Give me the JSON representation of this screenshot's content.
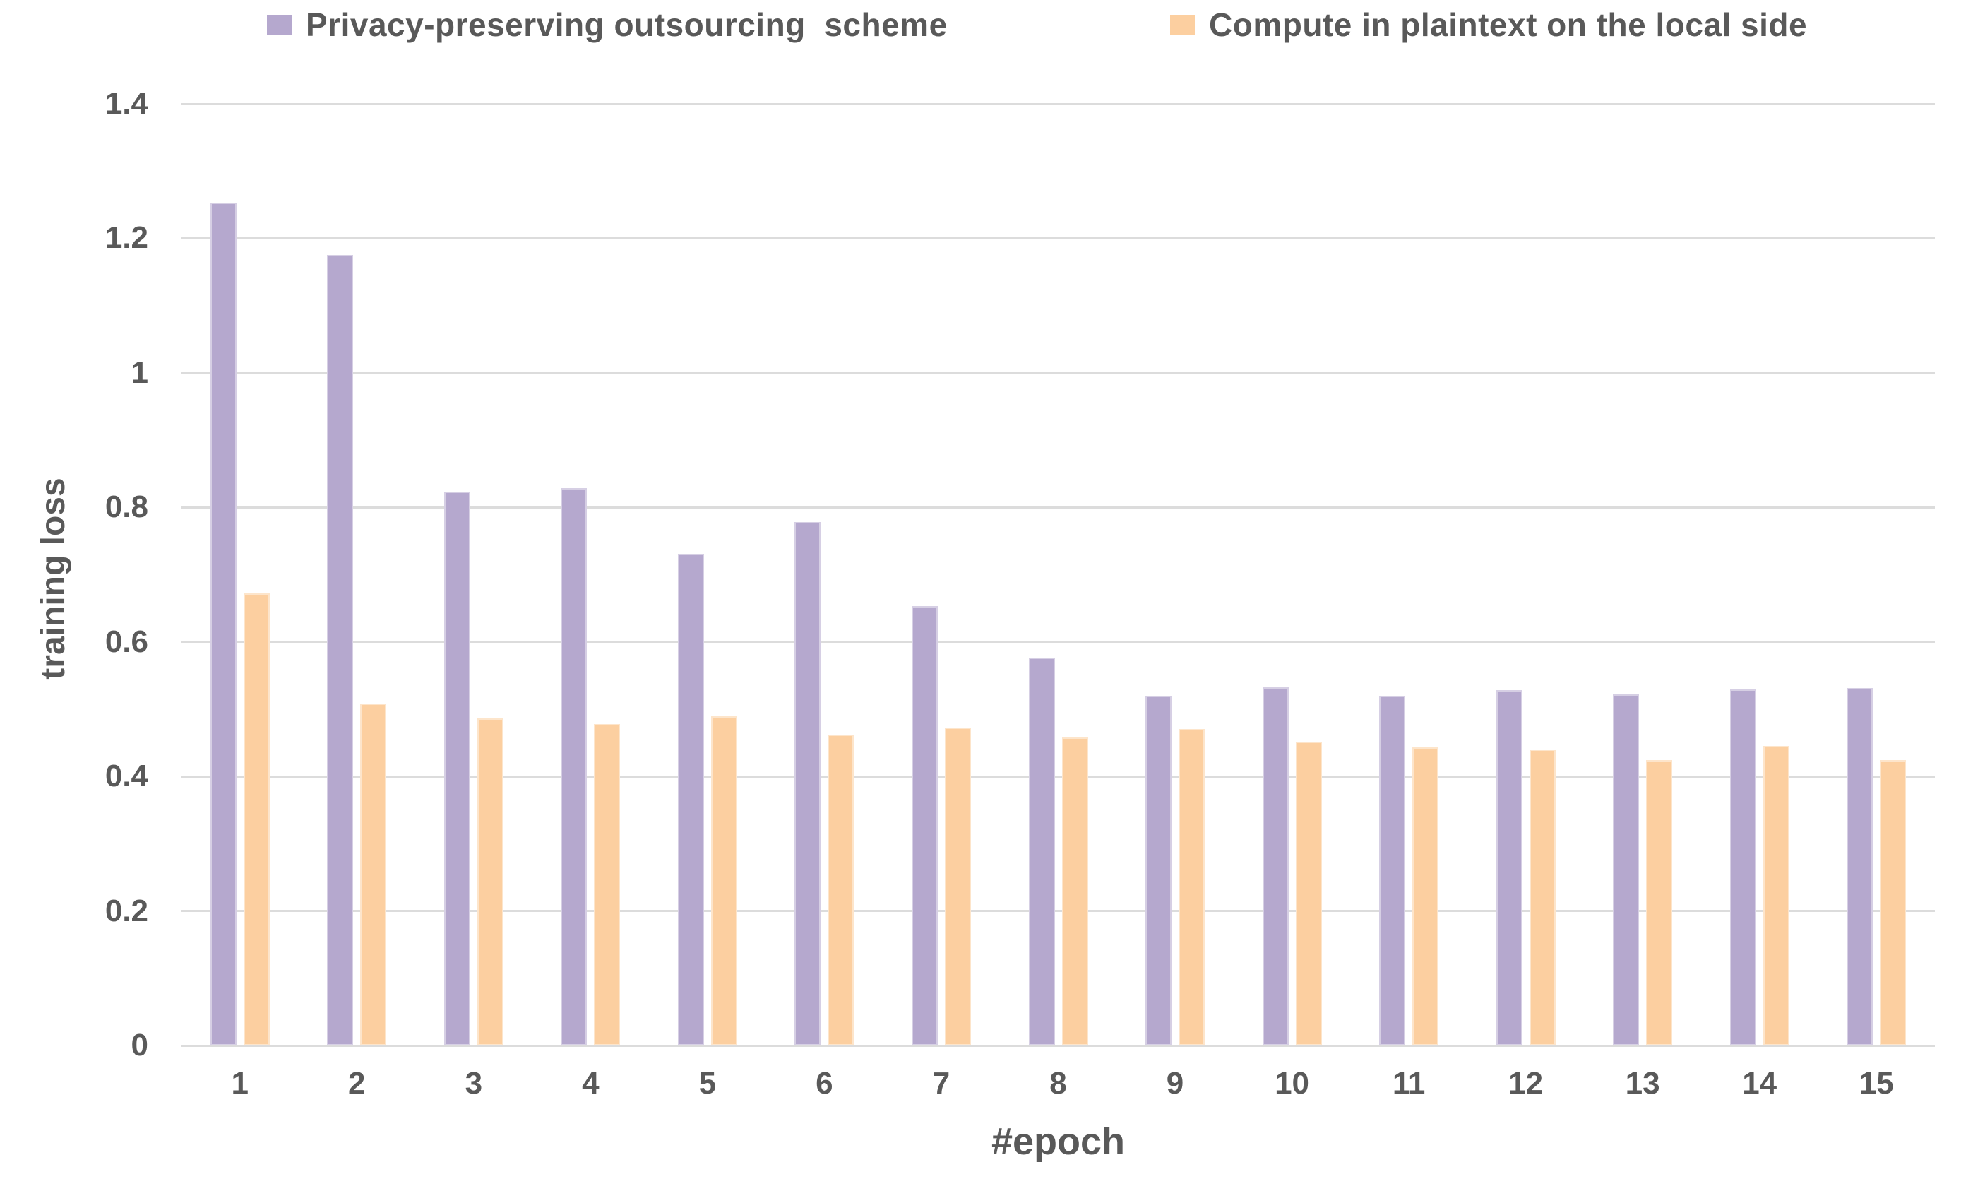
{
  "chart_data": {
    "type": "bar",
    "title": "",
    "xlabel": "#epoch",
    "ylabel": "training loss",
    "ylim": [
      0,
      1.4
    ],
    "yticks": [
      0,
      0.2,
      0.4,
      0.6,
      0.8,
      1,
      1.2,
      1.4
    ],
    "ytick_labels": [
      "0",
      "0.2",
      "0.4",
      "0.6",
      "0.8",
      "1",
      "1.2",
      "1.4"
    ],
    "grid": "horizontal",
    "legend_position": "top",
    "categories": [
      "1",
      "2",
      "3",
      "4",
      "5",
      "6",
      "7",
      "8",
      "9",
      "10",
      "11",
      "12",
      "13",
      "14",
      "15"
    ],
    "series": [
      {
        "name": "Privacy-preserving outsourcing  scheme",
        "color": "#b5a8ce",
        "values": [
          1.253,
          1.175,
          0.823,
          0.829,
          0.731,
          0.778,
          0.653,
          0.577,
          0.52,
          0.532,
          0.52,
          0.528,
          0.522,
          0.529,
          0.531
        ]
      },
      {
        "name": "Compute in plaintext on the local side",
        "color": "#fccfa0",
        "values": [
          0.672,
          0.508,
          0.486,
          0.478,
          0.489,
          0.462,
          0.473,
          0.458,
          0.47,
          0.452,
          0.443,
          0.44,
          0.424,
          0.445,
          0.424
        ]
      }
    ]
  },
  "colors": {
    "text": "#595959",
    "gridline": "#dcdcdc",
    "background": "#ffffff"
  }
}
